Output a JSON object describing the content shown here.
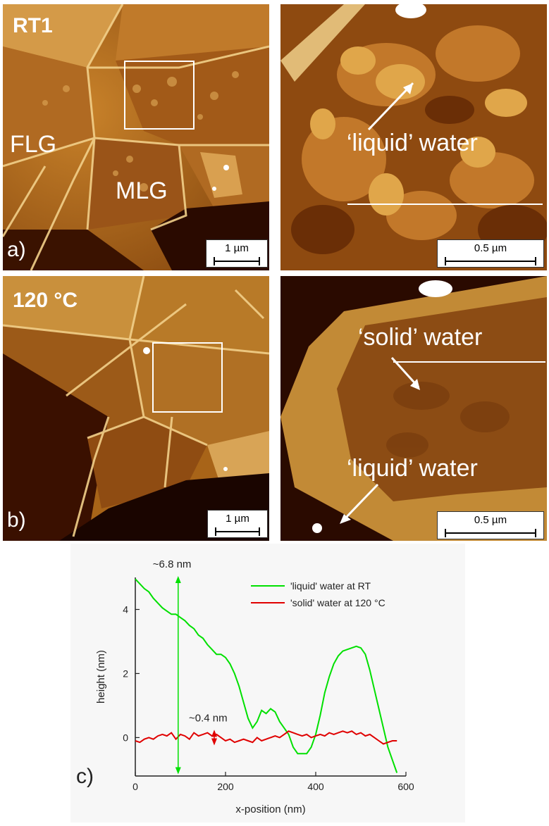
{
  "panels": {
    "a": {
      "sample_label": "RT1",
      "panel_letter": "a)",
      "region_labels": {
        "left": "FLG",
        "center": "MLG"
      },
      "scalebar": "1 µm"
    },
    "a_zoom": {
      "annotation": "‘liquid’ water",
      "scalebar": "0.5 µm"
    },
    "b": {
      "sample_label": "120 °C",
      "panel_letter": "b)",
      "scalebar": "1 µm"
    },
    "b_zoom": {
      "annotation_top": "‘solid’ water",
      "annotation_bottom": "‘liquid’ water",
      "scalebar": "0.5 µm"
    },
    "c": {
      "panel_letter": "c)",
      "annotation_large": "~6.8 nm",
      "annotation_small": "~0.4 nm"
    }
  },
  "colors": {
    "afm_dark": "#3a1200",
    "afm_mid": "#8a4a10",
    "afm_light": "#d89a3a",
    "afm_bright": "#f6e0a0",
    "liquid_series": "#00e000",
    "solid_series": "#e00000"
  },
  "chart_data": {
    "type": "line",
    "xlabel": "x-position (nm)",
    "ylabel": "height (nm)",
    "xlim": [
      0,
      600
    ],
    "ylim": [
      -1.2,
      5
    ],
    "xticks": [
      0,
      200,
      400,
      600
    ],
    "yticks": [
      0,
      2,
      4
    ],
    "grid": false,
    "legend": "top-right",
    "series": [
      {
        "name": "'liquid' water at RT",
        "color": "#00e000",
        "x": [
          0,
          10,
          20,
          30,
          40,
          50,
          60,
          70,
          80,
          90,
          100,
          110,
          120,
          130,
          140,
          150,
          160,
          170,
          180,
          190,
          200,
          210,
          220,
          230,
          240,
          250,
          260,
          270,
          280,
          290,
          300,
          310,
          320,
          330,
          340,
          350,
          360,
          370,
          380,
          390,
          400,
          410,
          420,
          430,
          440,
          450,
          460,
          470,
          480,
          490,
          500,
          510,
          520,
          530,
          540,
          550,
          560,
          570,
          580
        ],
        "y": [
          4.95,
          4.8,
          4.65,
          4.55,
          4.35,
          4.2,
          4.05,
          3.95,
          3.85,
          3.85,
          3.75,
          3.65,
          3.5,
          3.4,
          3.2,
          3.1,
          2.9,
          2.75,
          2.6,
          2.6,
          2.5,
          2.3,
          2.0,
          1.6,
          1.1,
          0.6,
          0.3,
          0.5,
          0.85,
          0.75,
          0.9,
          0.8,
          0.5,
          0.3,
          0.1,
          -0.3,
          -0.5,
          -0.5,
          -0.5,
          -0.3,
          0.1,
          0.7,
          1.4,
          1.9,
          2.3,
          2.55,
          2.7,
          2.75,
          2.8,
          2.85,
          2.8,
          2.6,
          2.1,
          1.5,
          0.9,
          0.3,
          -0.3,
          -0.7,
          -1.1
        ]
      },
      {
        "name": "'solid' water at 120 °C",
        "color": "#e00000",
        "x": [
          0,
          10,
          20,
          30,
          40,
          50,
          60,
          70,
          80,
          90,
          100,
          110,
          120,
          130,
          140,
          150,
          160,
          170,
          180,
          190,
          200,
          210,
          220,
          230,
          240,
          250,
          260,
          270,
          280,
          290,
          300,
          310,
          320,
          330,
          340,
          350,
          360,
          370,
          380,
          390,
          400,
          410,
          420,
          430,
          440,
          450,
          460,
          470,
          480,
          490,
          500,
          510,
          520,
          530,
          540,
          550,
          560,
          570,
          580
        ],
        "y": [
          -0.1,
          -0.15,
          -0.05,
          0.0,
          -0.05,
          0.05,
          0.1,
          0.05,
          0.15,
          -0.05,
          0.1,
          0.05,
          -0.05,
          0.15,
          0.05,
          0.1,
          0.15,
          0.05,
          0.1,
          0.0,
          -0.1,
          -0.05,
          -0.15,
          -0.1,
          -0.05,
          -0.1,
          -0.15,
          0.0,
          -0.1,
          -0.05,
          0.0,
          0.05,
          0.0,
          0.1,
          0.2,
          0.15,
          0.1,
          0.05,
          0.1,
          0.0,
          0.05,
          0.1,
          0.05,
          0.15,
          0.1,
          0.15,
          0.2,
          0.15,
          0.2,
          0.1,
          0.15,
          0.05,
          0.1,
          0.0,
          -0.1,
          -0.2,
          -0.15,
          -0.1,
          -0.1
        ]
      }
    ],
    "annotations": [
      {
        "text": "~6.8 nm",
        "x": 95,
        "y_range": [
          -1.1,
          5.0
        ]
      },
      {
        "text": "~0.4 nm",
        "x": 175,
        "y_range": [
          -0.2,
          0.2
        ]
      }
    ]
  }
}
